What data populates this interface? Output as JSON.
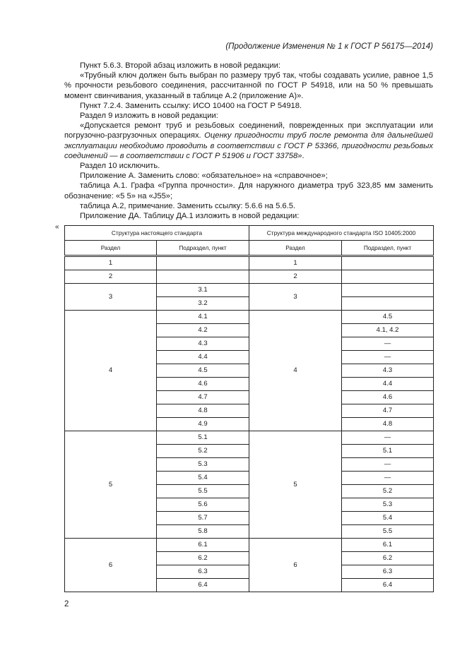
{
  "header": "(Продолжение Изменения № 1 к ГОСТ Р 56175—2014)",
  "paragraphs": [
    "Пункт 5.6.3. Второй абзац изложить в новой редакции:",
    "«Трубный ключ должен быть выбран по размеру труб так, чтобы создавать усилие, равное 1,5 % прочности резьбового соединения, рассчитанной по ГОСТ Р 54918, или на 50 % превышать момент свинчивания, указанный в таблице А.2 (приложение А)».",
    "Пункт 7.2.4. Заменить ссылку: ИСО 10400 на ГОСТ Р 54918.",
    "Раздел 9 изложить в новой редакции:"
  ],
  "p9_normal": "«Допускается ремонт труб и резьбовых соединений, поврежденных при эксплуатации или погрузочно-разгрузочных операциях. ",
  "p9_italic": "Оценку пригодности труб после ремонта для дальнейшей эксплуатации необходимо проводить в соответствии с ГОСТ Р 53366, пригодности резьбовых соединений — в соответствии с ГОСТ Р 51906 и ГОСТ 33758»",
  "p9_end": ".",
  "paragraphs2": [
    "Раздел 10 исключить.",
    "Приложение А. Заменить слово: «обязательное» на «справочное»;",
    "таблица А.1. Графа «Группа прочности». Для наружного диаметра труб 323,85 мм заменить обозначение: «5 5» на «J55»;",
    "таблица А.2, примечание. Заменить ссылку: 5.6.6 на 5.6.5.",
    "Приложение ДА. Таблицу ДА.1 изложить в новой редакции:"
  ],
  "quote_open": "«",
  "table": {
    "group_headers": [
      "Структура настоящего стандарта",
      "Структура международного стандарта  ISO 10405:2000"
    ],
    "col_headers": [
      "Раздел",
      "Подраздел, пункт",
      "Раздел",
      "Подраздел, пункт"
    ],
    "groups": [
      {
        "left": "1",
        "left_sub": [
          ""
        ],
        "right": "1",
        "right_sub": [
          ""
        ]
      },
      {
        "left": "2",
        "left_sub": [
          ""
        ],
        "right": "2",
        "right_sub": [
          ""
        ]
      },
      {
        "left": "3",
        "left_sub": [
          "3.1",
          "3.2"
        ],
        "right": "3",
        "right_sub": [
          "",
          ""
        ]
      },
      {
        "left": "4",
        "left_sub": [
          "4.1",
          "4.2",
          "4.3",
          "4.4",
          "4.5",
          "4.6",
          "4.7",
          "4.8",
          "4.9"
        ],
        "right": "4",
        "right_sub": [
          "4.5",
          "4.1, 4.2",
          "—",
          "—",
          "4.3",
          "4.4",
          "4.6",
          "4.7",
          "4.8"
        ]
      },
      {
        "left": "5",
        "left_sub": [
          "5.1",
          "5.2",
          "5.3",
          "5.4",
          "5.5",
          "5.6",
          "5.7",
          "5.8"
        ],
        "right": "5",
        "right_sub": [
          "—",
          "5.1",
          "—",
          "—",
          "5.2",
          "5.3",
          "5.4",
          "5.5"
        ]
      },
      {
        "left": "6",
        "left_sub": [
          "6.1",
          "6.2",
          "6.3",
          "6.4"
        ],
        "right": "6",
        "right_sub": [
          "6.1",
          "6.2",
          "6.3",
          "6.4"
        ]
      }
    ]
  },
  "page_number": "2"
}
